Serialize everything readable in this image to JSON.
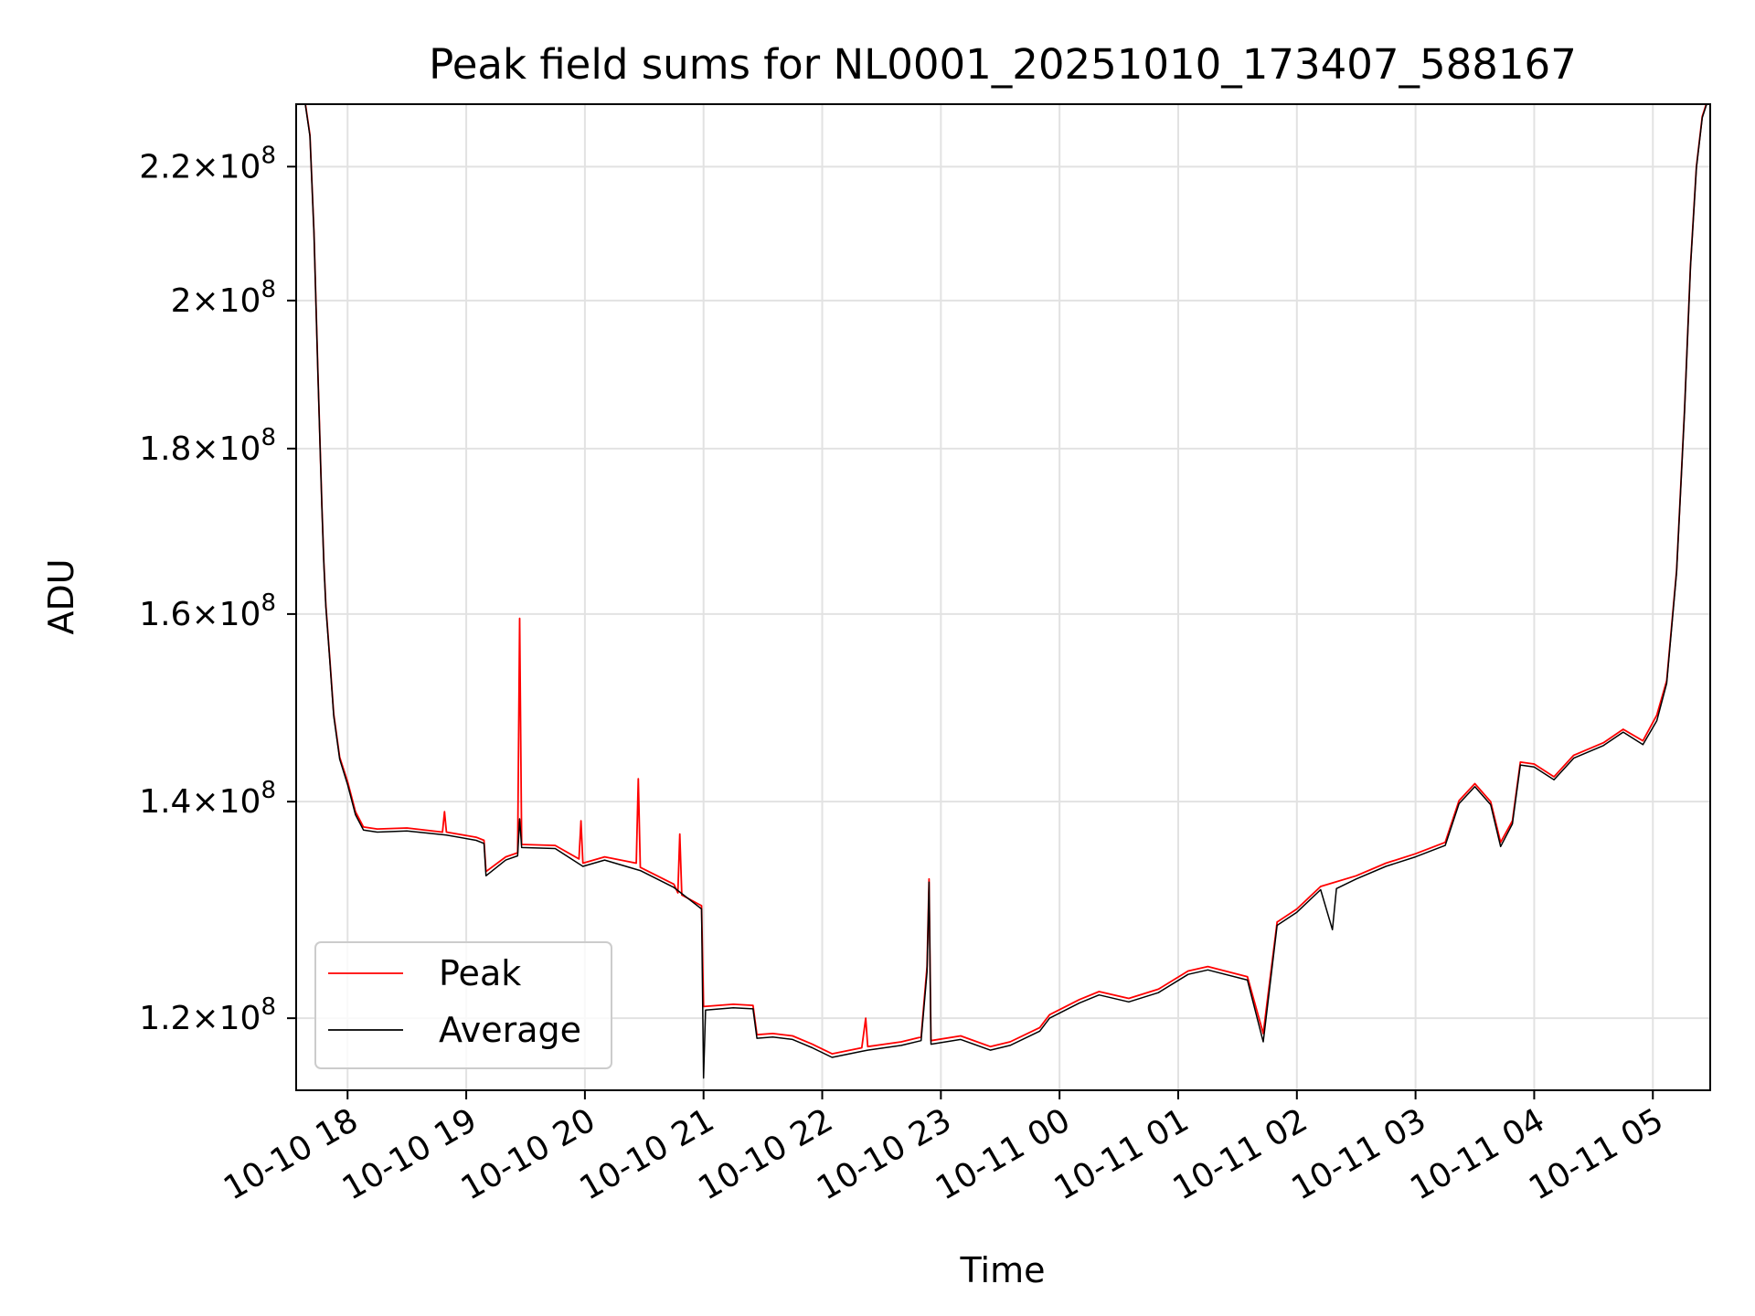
{
  "chart_data": {
    "type": "line",
    "title": "Peak field sums for NL0001_20251010_173407_588167",
    "xlabel": "Time",
    "ylabel": "ADU",
    "yscale": "log",
    "grid": true,
    "legend_placement": "lower-left",
    "xlim": [
      "2025-10-10 17:34",
      "2025-10-11 05:29"
    ],
    "ylim": [
      114000000,
      230000000
    ],
    "x_ticks": [
      {
        "t": "2025-10-10 18:00",
        "label": "10-10 18"
      },
      {
        "t": "2025-10-10 19:00",
        "label": "10-10 19"
      },
      {
        "t": "2025-10-10 20:00",
        "label": "10-10 20"
      },
      {
        "t": "2025-10-10 21:00",
        "label": "10-10 21"
      },
      {
        "t": "2025-10-10 22:00",
        "label": "10-10 22"
      },
      {
        "t": "2025-10-10 23:00",
        "label": "10-10 23"
      },
      {
        "t": "2025-10-11 00:00",
        "label": "10-11 00"
      },
      {
        "t": "2025-10-11 01:00",
        "label": "10-11 01"
      },
      {
        "t": "2025-10-11 02:00",
        "label": "10-11 02"
      },
      {
        "t": "2025-10-11 03:00",
        "label": "10-11 03"
      },
      {
        "t": "2025-10-11 04:00",
        "label": "10-11 04"
      },
      {
        "t": "2025-10-11 05:00",
        "label": "10-11 05"
      }
    ],
    "y_ticks": [
      {
        "v": 120000000,
        "mant": "1.2",
        "exp": "8"
      },
      {
        "v": 140000000,
        "mant": "1.4",
        "exp": "8"
      },
      {
        "v": 160000000,
        "mant": "1.6",
        "exp": "8"
      },
      {
        "v": 180000000,
        "mant": "1.8",
        "exp": "8"
      },
      {
        "v": 200000000,
        "mant": "2",
        "exp": "8"
      },
      {
        "v": 220000000,
        "mant": "2.2",
        "exp": "8"
      }
    ],
    "series": [
      {
        "name": "Peak",
        "color": "#ff0000",
        "points": [
          [
            "2025-10-10 17:34",
            231000000
          ],
          [
            "2025-10-10 17:38",
            231500000
          ],
          [
            "2025-10-10 17:41",
            225000000
          ],
          [
            "2025-10-10 17:43",
            210000000
          ],
          [
            "2025-10-10 17:45",
            190000000
          ],
          [
            "2025-10-10 17:47",
            173000000
          ],
          [
            "2025-10-10 17:48",
            166000000
          ],
          [
            "2025-10-10 17:49",
            161000000
          ],
          [
            "2025-10-10 17:51",
            155000000
          ],
          [
            "2025-10-10 17:53",
            149000000
          ],
          [
            "2025-10-10 17:56",
            144500000
          ],
          [
            "2025-10-10 18:00",
            142000000
          ],
          [
            "2025-10-10 18:04",
            139000000
          ],
          [
            "2025-10-10 18:08",
            137500000
          ],
          [
            "2025-10-10 18:15",
            137300000
          ],
          [
            "2025-10-10 18:30",
            137400000
          ],
          [
            "2025-10-10 18:48",
            137000000
          ],
          [
            "2025-10-10 18:49",
            139000000
          ],
          [
            "2025-10-10 18:50",
            137000000
          ],
          [
            "2025-10-10 19:05",
            136500000
          ],
          [
            "2025-10-10 19:09",
            136200000
          ],
          [
            "2025-10-10 19:10",
            133200000
          ],
          [
            "2025-10-10 19:20",
            134600000
          ],
          [
            "2025-10-10 19:26",
            135000000
          ],
          [
            "2025-10-10 19:27",
            159500000
          ],
          [
            "2025-10-10 19:28",
            135800000
          ],
          [
            "2025-10-10 19:45",
            135700000
          ],
          [
            "2025-10-10 19:57",
            134400000
          ],
          [
            "2025-10-10 19:58",
            138100000
          ],
          [
            "2025-10-10 19:59",
            134000000
          ],
          [
            "2025-10-10 20:10",
            134600000
          ],
          [
            "2025-10-10 20:26",
            134000000
          ],
          [
            "2025-10-10 20:27",
            142300000
          ],
          [
            "2025-10-10 20:28",
            133600000
          ],
          [
            "2025-10-10 20:45",
            132000000
          ],
          [
            "2025-10-10 20:47",
            131200000
          ],
          [
            "2025-10-10 20:48",
            136800000
          ],
          [
            "2025-10-10 20:49",
            131000000
          ],
          [
            "2025-10-10 20:59",
            130000000
          ],
          [
            "2025-10-10 21:00",
            121000000
          ],
          [
            "2025-10-10 21:15",
            121200000
          ],
          [
            "2025-10-10 21:25",
            121100000
          ],
          [
            "2025-10-10 21:27",
            118600000
          ],
          [
            "2025-10-10 21:35",
            118700000
          ],
          [
            "2025-10-10 21:45",
            118500000
          ],
          [
            "2025-10-10 21:55",
            117800000
          ],
          [
            "2025-10-10 22:05",
            117000000
          ],
          [
            "2025-10-10 22:20",
            117500000
          ],
          [
            "2025-10-10 22:22",
            120000000
          ],
          [
            "2025-10-10 22:23",
            117600000
          ],
          [
            "2025-10-10 22:40",
            118000000
          ],
          [
            "2025-10-10 22:50",
            118400000
          ],
          [
            "2025-10-10 22:53",
            124500000
          ],
          [
            "2025-10-10 22:54",
            132500000
          ],
          [
            "2025-10-10 22:55",
            118100000
          ],
          [
            "2025-10-10 23:10",
            118500000
          ],
          [
            "2025-10-10 23:25",
            117600000
          ],
          [
            "2025-10-10 23:35",
            118000000
          ],
          [
            "2025-10-10 23:50",
            119200000
          ],
          [
            "2025-10-10 23:55",
            120300000
          ],
          [
            "2025-10-11 00:10",
            121600000
          ],
          [
            "2025-10-11 00:20",
            122300000
          ],
          [
            "2025-10-11 00:35",
            121700000
          ],
          [
            "2025-10-11 00:50",
            122500000
          ],
          [
            "2025-10-11 01:05",
            124100000
          ],
          [
            "2025-10-11 01:15",
            124500000
          ],
          [
            "2025-10-11 01:35",
            123600000
          ],
          [
            "2025-10-11 01:43",
            118700000
          ],
          [
            "2025-10-11 01:50",
            128500000
          ],
          [
            "2025-10-11 02:00",
            129700000
          ],
          [
            "2025-10-11 02:12",
            131800000
          ],
          [
            "2025-10-11 02:30",
            132800000
          ],
          [
            "2025-10-11 02:45",
            134000000
          ],
          [
            "2025-10-11 03:00",
            134900000
          ],
          [
            "2025-10-11 03:15",
            136000000
          ],
          [
            "2025-10-11 03:22",
            140100000
          ],
          [
            "2025-10-11 03:30",
            141800000
          ],
          [
            "2025-10-11 03:38",
            140000000
          ],
          [
            "2025-10-11 03:43",
            136000000
          ],
          [
            "2025-10-11 03:49",
            138100000
          ],
          [
            "2025-10-11 03:53",
            144000000
          ],
          [
            "2025-10-11 04:00",
            143800000
          ],
          [
            "2025-10-11 04:10",
            142500000
          ],
          [
            "2025-10-11 04:20",
            144700000
          ],
          [
            "2025-10-11 04:35",
            146000000
          ],
          [
            "2025-10-11 04:45",
            147400000
          ],
          [
            "2025-10-11 04:55",
            146200000
          ],
          [
            "2025-10-11 05:02",
            148900000
          ],
          [
            "2025-10-11 05:07",
            152600000
          ],
          [
            "2025-10-11 05:12",
            165000000
          ],
          [
            "2025-10-11 05:16",
            185000000
          ],
          [
            "2025-10-11 05:19",
            205000000
          ],
          [
            "2025-10-11 05:22",
            220000000
          ],
          [
            "2025-10-11 05:25",
            228000000
          ],
          [
            "2025-10-11 05:29",
            232000000
          ]
        ]
      },
      {
        "name": "Average",
        "color": "#000000",
        "points": [
          [
            "2025-10-10 17:34",
            230800000
          ],
          [
            "2025-10-10 17:38",
            231300000
          ],
          [
            "2025-10-10 17:41",
            224800000
          ],
          [
            "2025-10-10 17:43",
            209800000
          ],
          [
            "2025-10-10 17:45",
            189800000
          ],
          [
            "2025-10-10 17:47",
            172800000
          ],
          [
            "2025-10-10 17:48",
            165800000
          ],
          [
            "2025-10-10 17:49",
            160800000
          ],
          [
            "2025-10-10 17:51",
            154800000
          ],
          [
            "2025-10-10 17:53",
            148800000
          ],
          [
            "2025-10-10 17:56",
            144300000
          ],
          [
            "2025-10-10 18:00",
            141700000
          ],
          [
            "2025-10-10 18:04",
            138700000
          ],
          [
            "2025-10-10 18:08",
            137200000
          ],
          [
            "2025-10-10 18:15",
            137000000
          ],
          [
            "2025-10-10 18:30",
            137100000
          ],
          [
            "2025-10-10 18:50",
            136700000
          ],
          [
            "2025-10-10 19:05",
            136200000
          ],
          [
            "2025-10-10 19:09",
            135900000
          ],
          [
            "2025-10-10 19:10",
            132800000
          ],
          [
            "2025-10-10 19:20",
            134300000
          ],
          [
            "2025-10-10 19:26",
            134700000
          ],
          [
            "2025-10-10 19:27",
            138300000
          ],
          [
            "2025-10-10 19:28",
            135500000
          ],
          [
            "2025-10-10 19:45",
            135400000
          ],
          [
            "2025-10-10 19:59",
            133700000
          ],
          [
            "2025-10-10 20:10",
            134300000
          ],
          [
            "2025-10-10 20:28",
            133300000
          ],
          [
            "2025-10-10 20:45",
            131700000
          ],
          [
            "2025-10-10 20:59",
            129700000
          ],
          [
            "2025-10-10 21:00",
            115000000
          ],
          [
            "2025-10-10 21:01",
            120700000
          ],
          [
            "2025-10-10 21:15",
            120900000
          ],
          [
            "2025-10-10 21:25",
            120800000
          ],
          [
            "2025-10-10 21:27",
            118300000
          ],
          [
            "2025-10-10 21:35",
            118400000
          ],
          [
            "2025-10-10 21:45",
            118200000
          ],
          [
            "2025-10-10 21:55",
            117500000
          ],
          [
            "2025-10-10 22:05",
            116700000
          ],
          [
            "2025-10-10 22:20",
            117200000
          ],
          [
            "2025-10-10 22:23",
            117300000
          ],
          [
            "2025-10-10 22:40",
            117700000
          ],
          [
            "2025-10-10 22:50",
            118100000
          ],
          [
            "2025-10-10 22:53",
            124000000
          ],
          [
            "2025-10-10 22:54",
            132200000
          ],
          [
            "2025-10-10 22:55",
            117800000
          ],
          [
            "2025-10-10 23:10",
            118200000
          ],
          [
            "2025-10-10 23:25",
            117300000
          ],
          [
            "2025-10-10 23:35",
            117700000
          ],
          [
            "2025-10-10 23:50",
            118900000
          ],
          [
            "2025-10-10 23:55",
            120000000
          ],
          [
            "2025-10-11 00:10",
            121300000
          ],
          [
            "2025-10-11 00:20",
            122000000
          ],
          [
            "2025-10-11 00:35",
            121400000
          ],
          [
            "2025-10-11 00:50",
            122200000
          ],
          [
            "2025-10-11 01:05",
            123800000
          ],
          [
            "2025-10-11 01:15",
            124200000
          ],
          [
            "2025-10-11 01:35",
            123300000
          ],
          [
            "2025-10-11 01:43",
            118000000
          ],
          [
            "2025-10-11 01:50",
            128200000
          ],
          [
            "2025-10-11 02:00",
            129400000
          ],
          [
            "2025-10-11 02:12",
            131500000
          ],
          [
            "2025-10-11 02:18",
            127800000
          ],
          [
            "2025-10-11 02:20",
            131600000
          ],
          [
            "2025-10-11 02:30",
            132500000
          ],
          [
            "2025-10-11 02:45",
            133700000
          ],
          [
            "2025-10-11 03:00",
            134600000
          ],
          [
            "2025-10-11 03:15",
            135700000
          ],
          [
            "2025-10-11 03:22",
            139800000
          ],
          [
            "2025-10-11 03:30",
            141500000
          ],
          [
            "2025-10-11 03:38",
            139700000
          ],
          [
            "2025-10-11 03:43",
            135600000
          ],
          [
            "2025-10-11 03:49",
            137800000
          ],
          [
            "2025-10-11 03:53",
            143700000
          ],
          [
            "2025-10-11 04:00",
            143500000
          ],
          [
            "2025-10-11 04:10",
            142200000
          ],
          [
            "2025-10-11 04:20",
            144400000
          ],
          [
            "2025-10-11 04:35",
            145700000
          ],
          [
            "2025-10-11 04:45",
            147100000
          ],
          [
            "2025-10-11 04:55",
            145800000
          ],
          [
            "2025-10-11 05:02",
            148300000
          ],
          [
            "2025-10-11 05:07",
            152300000
          ],
          [
            "2025-10-11 05:12",
            164800000
          ],
          [
            "2025-10-11 05:16",
            184800000
          ],
          [
            "2025-10-11 05:19",
            204800000
          ],
          [
            "2025-10-11 05:22",
            219800000
          ],
          [
            "2025-10-11 05:25",
            227800000
          ],
          [
            "2025-10-11 05:29",
            231800000
          ]
        ]
      }
    ]
  }
}
